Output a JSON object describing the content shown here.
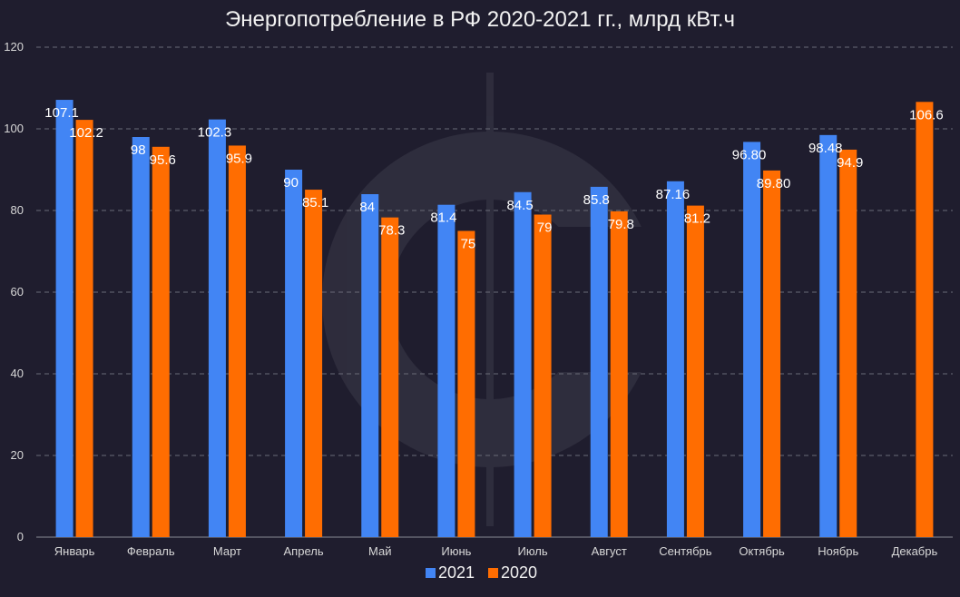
{
  "chart_data": {
    "type": "bar",
    "title": "Энергопотребление в РФ 2020-2021 гг., млрд кВт.ч",
    "xlabel": "",
    "ylabel": "",
    "ylim": [
      0,
      120
    ],
    "yticks": [
      0,
      20,
      40,
      60,
      80,
      100,
      120
    ],
    "grid": true,
    "legend_position": "bottom",
    "categories": [
      "Январь",
      "Февраль",
      "Март",
      "Апрель",
      "Май",
      "Июнь",
      "Июль",
      "Август",
      "Сентябрь",
      "Октябрь",
      "Ноябрь",
      "Декабрь"
    ],
    "series": [
      {
        "name": "2021",
        "color": "#4285f4",
        "values": [
          107.1,
          98,
          102.3,
          90,
          84,
          81.4,
          84.5,
          85.8,
          87.16,
          96.8,
          98.48,
          null
        ],
        "labels": [
          "107.1",
          "98",
          "102.3",
          "90",
          "84",
          "81.4",
          "84.5",
          "85.8",
          "87.16",
          "96.80",
          "98.48",
          ""
        ]
      },
      {
        "name": "2020",
        "color": "#ff6d01",
        "values": [
          102.2,
          95.6,
          95.9,
          85.1,
          78.3,
          75,
          79,
          79.8,
          81.2,
          89.8,
          94.9,
          106.6
        ],
        "labels": [
          "102.2",
          "95.6",
          "95.9",
          "85.1",
          "78.3",
          "75",
          "79",
          "79.8",
          "81.2",
          "89.80",
          "94.9",
          "106.6"
        ]
      }
    ]
  },
  "colors": {
    "background": "#1f1d2e",
    "grid": "#6a6a78",
    "axis": "#8a8a94",
    "text": "#f2f2f2"
  }
}
